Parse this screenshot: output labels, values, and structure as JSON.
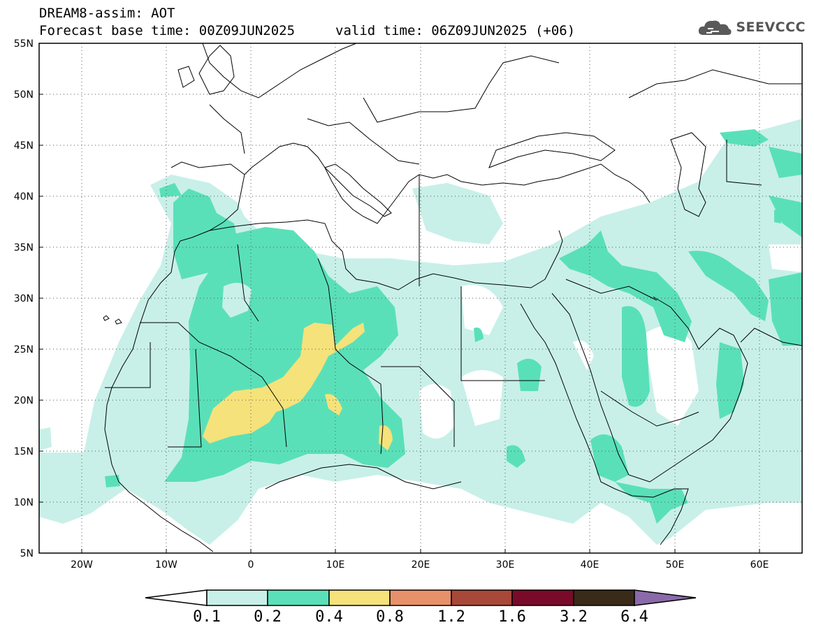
{
  "header": {
    "model_line": "DREAM8-assim: AOT",
    "base_time": "Forecast base time: 00Z09JUN2025",
    "valid_time": "valid time: 06Z09JUN2025 (+06)"
  },
  "logo": {
    "text": "SEEVCCC"
  },
  "map": {
    "lon_range": [
      -25,
      65
    ],
    "lat_range": [
      5,
      55
    ],
    "lat_ticks": [
      "5N",
      "10N",
      "15N",
      "20N",
      "25N",
      "30N",
      "35N",
      "40N",
      "45N",
      "50N",
      "55N"
    ],
    "lon_ticks": [
      "20W",
      "10W",
      "0",
      "10E",
      "20E",
      "30E",
      "40E",
      "50E",
      "60E"
    ],
    "grid": "dotted"
  },
  "legend": {
    "levels": [
      "0.1",
      "0.2",
      "0.4",
      "0.8",
      "1.2",
      "1.6",
      "3.2",
      "6.4"
    ],
    "colors": [
      "#c8f0e8",
      "#5ae0b8",
      "#f5e27a",
      "#e8906a",
      "#a84838",
      "#7a0a2a",
      "#3a2a18",
      "#8a6aa8"
    ]
  }
}
